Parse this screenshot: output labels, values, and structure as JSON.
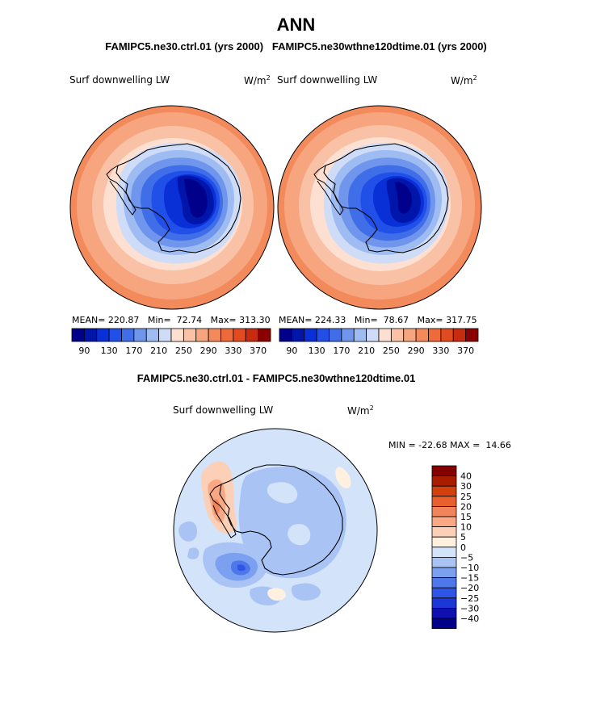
{
  "page": {
    "title": "ANN",
    "subtitle": "FAMIPC5.ne30.ctrl.01 (yrs 2000)   FAMIPC5.ne30wthne120dtime.01 (yrs 2000)",
    "diff_title": "FAMIPC5.ne30.ctrl.01 - FAMIPC5.ne30wthne120dtime.01"
  },
  "colors": {
    "main_scale": [
      "#00008b",
      "#0015aa",
      "#0930d6",
      "#2050e8",
      "#3f6ee8",
      "#6f96ec",
      "#9fbcf2",
      "#cfdcf7",
      "#fde0d1",
      "#f9c2a6",
      "#f6a57f",
      "#f28a5c",
      "#ef6a3a",
      "#e24a1f",
      "#c82b0d",
      "#8b0000"
    ],
    "diff_scale": [
      "#00008b",
      "#1010b0",
      "#1c36d8",
      "#2d55e6",
      "#4e78ea",
      "#7aa0ef",
      "#a9c4f4",
      "#d3e3fa",
      "#fff0e0",
      "#fcd0b6",
      "#f8a884",
      "#f1845a",
      "#e9602f",
      "#d2400e",
      "#a81c00",
      "#840000"
    ]
  },
  "chart_data": [
    {
      "type": "heatmap",
      "projection": "south-polar-stereographic",
      "case": "FAMIPC5.ne30.ctrl.01",
      "field_label": "Surf downwelling LW",
      "units_label": "W/m",
      "units_exp": "2",
      "stats": {
        "mean": "220.87",
        "min": "72.74",
        "max": "313.30"
      },
      "mean_label": "MEAN=",
      "min_label": "Min=",
      "max_label": "Max=",
      "levels": [
        90,
        110,
        130,
        150,
        170,
        190,
        210,
        230,
        250,
        270,
        290,
        310,
        330,
        350,
        370
      ],
      "tick_labels": [
        "90",
        "130",
        "170",
        "210",
        "250",
        "290",
        "330",
        "370"
      ],
      "colorbar_orientation": "horizontal"
    },
    {
      "type": "heatmap",
      "projection": "south-polar-stereographic",
      "case": "FAMIPC5.ne30wthne120dtime.01",
      "field_label": "Surf downwelling LW",
      "units_label": "W/m",
      "units_exp": "2",
      "stats": {
        "mean": "224.33",
        "min": "78.67",
        "max": "317.75"
      },
      "mean_label": "MEAN=",
      "min_label": "Min=",
      "max_label": "Max=",
      "levels": [
        90,
        110,
        130,
        150,
        170,
        190,
        210,
        230,
        250,
        270,
        290,
        310,
        330,
        350,
        370
      ],
      "tick_labels": [
        "90",
        "130",
        "170",
        "210",
        "250",
        "290",
        "330",
        "370"
      ],
      "colorbar_orientation": "horizontal"
    },
    {
      "type": "heatmap",
      "projection": "south-polar-stereographic",
      "case": "difference",
      "field_label": "Surf downwelling LW",
      "units_label": "W/m",
      "units_exp": "2",
      "stats_text": "MIN = -22.68 MAX =  14.66",
      "levels": [
        40,
        30,
        25,
        20,
        15,
        10,
        5,
        0,
        -5,
        -10,
        -15,
        -20,
        -25,
        -30,
        -40
      ],
      "tick_labels": [
        "40",
        "30",
        "25",
        "20",
        "15",
        "10",
        "5",
        "0",
        "−5",
        "−10",
        "−15",
        "−20",
        "−25",
        "−30",
        "−40"
      ],
      "colorbar_orientation": "vertical"
    }
  ]
}
